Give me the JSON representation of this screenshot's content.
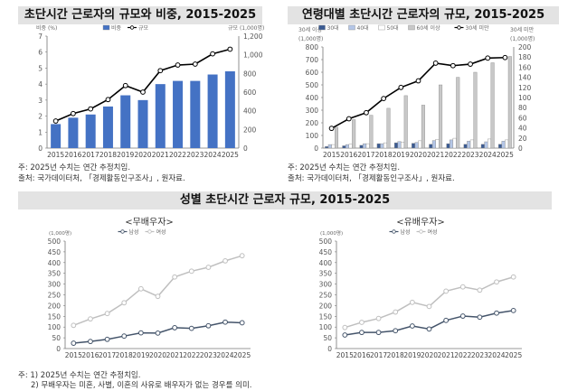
{
  "chart_data": [
    {
      "type": "bar+line",
      "title": "초단시간 근로자의 규모와 비중, 2015-2025",
      "left_axis_label": "비중 (%)",
      "right_axis_label": "규모 (1,000명)",
      "categories": [
        "2015",
        "2016",
        "2017",
        "2018",
        "2019",
        "2020",
        "2021",
        "2022",
        "2023",
        "2024",
        "2025"
      ],
      "ylim_left": [
        0,
        7
      ],
      "ylim_right": [
        0,
        1200
      ],
      "series": [
        {
          "name": "비중",
          "kind": "bar",
          "axis": "left",
          "color": "#4472c4",
          "values": [
            1.5,
            1.9,
            2.1,
            2.6,
            3.3,
            3.0,
            4.0,
            4.2,
            4.2,
            4.6,
            4.8
          ]
        },
        {
          "name": "규모",
          "kind": "line",
          "axis": "right",
          "color": "#000000",
          "values": [
            290,
            370,
            420,
            520,
            670,
            600,
            830,
            890,
            900,
            1010,
            1060
          ]
        }
      ],
      "legend": "top",
      "notes": [
        "주: 2025년 수치는 연간 추정치임.",
        "출처: 국가데이터처, 「경제활동인구조사」, 원자료."
      ]
    },
    {
      "type": "bar+line",
      "title": "연령대별 초단시간 근로자의 규모, 2015-2025",
      "left_axis_label": [
        "30세 이상",
        "(1,000명)"
      ],
      "right_axis_label": [
        "30세 미만",
        "(1,000명)"
      ],
      "categories": [
        "2015",
        "2016",
        "2017",
        "2018",
        "2019",
        "2020",
        "2021",
        "2022",
        "2023",
        "2024",
        "2025"
      ],
      "ylim_left": [
        0,
        800
      ],
      "ylim_right": [
        0,
        200
      ],
      "series": [
        {
          "name": "30대",
          "kind": "bar",
          "axis": "left",
          "color": "#3a5a92",
          "values": [
            12,
            18,
            22,
            35,
            42,
            38,
            30,
            35,
            30,
            30,
            30
          ]
        },
        {
          "name": "40대",
          "kind": "bar",
          "axis": "left",
          "color": "#b4c6e7",
          "values": [
            28,
            28,
            35,
            35,
            52,
            45,
            60,
            65,
            55,
            50,
            55
          ]
        },
        {
          "name": "50대",
          "kind": "bar",
          "axis": "left",
          "color": "#ffffff",
          "values": [
            28,
            30,
            35,
            42,
            48,
            58,
            70,
            78,
            65,
            72,
            65
          ]
        },
        {
          "name": "60세 이상",
          "kind": "bar",
          "axis": "left",
          "color": "#c8c8c8",
          "values": [
            165,
            225,
            260,
            315,
            415,
            340,
            500,
            560,
            600,
            675,
            725
          ]
        },
        {
          "name": "30세 미만",
          "kind": "line",
          "axis": "right",
          "color": "#000000",
          "values": [
            39,
            58,
            70,
            98,
            120,
            133,
            168,
            163,
            166,
            178,
            179
          ]
        }
      ],
      "legend": "top",
      "notes": [
        "주: 2025년 수치는 연간 추정치임.",
        "출처: 국가데이터처, 「경제활동인구조사」, 원자료."
      ]
    },
    {
      "type": "line",
      "subtitle": "<무배우자>",
      "ylabel": "(1,000명)",
      "categories": [
        "2015",
        "2016",
        "2017",
        "2018",
        "2019",
        "2020",
        "2021",
        "2022",
        "2023",
        "2024",
        "2025"
      ],
      "ylim": [
        0,
        500
      ],
      "series": [
        {
          "name": "남성",
          "color": "#44546a",
          "values": [
            25,
            33,
            43,
            58,
            73,
            72,
            97,
            94,
            106,
            123,
            120
          ]
        },
        {
          "name": "여성",
          "color": "#bfbfbf",
          "values": [
            108,
            138,
            163,
            213,
            278,
            243,
            333,
            360,
            378,
            408,
            432
          ]
        }
      ],
      "legend": "top"
    },
    {
      "type": "line",
      "subtitle": "<유배우자>",
      "ylabel": "(1,000명)",
      "categories": [
        "2015",
        "2016",
        "2017",
        "2018",
        "2019",
        "2020",
        "2021",
        "2022",
        "2023",
        "2024",
        "2025"
      ],
      "ylim": [
        0,
        500
      ],
      "series": [
        {
          "name": "남성",
          "color": "#44546a",
          "values": [
            63,
            75,
            75,
            83,
            105,
            91,
            131,
            151,
            146,
            165,
            177
          ]
        },
        {
          "name": "여성",
          "color": "#bfbfbf",
          "values": [
            98,
            122,
            140,
            170,
            215,
            196,
            267,
            287,
            272,
            310,
            333
          ]
        }
      ],
      "legend": "top"
    }
  ],
  "section_title": "성별 초단시간 근로자 규모, 2015-2025",
  "bottom_notes": [
    "주: 1) 2025년 수치는 연간 추정치임.",
    "2) 무배우자는 미혼, 사별, 이혼의 사유로 배우자가 없는 경우를 의미."
  ]
}
